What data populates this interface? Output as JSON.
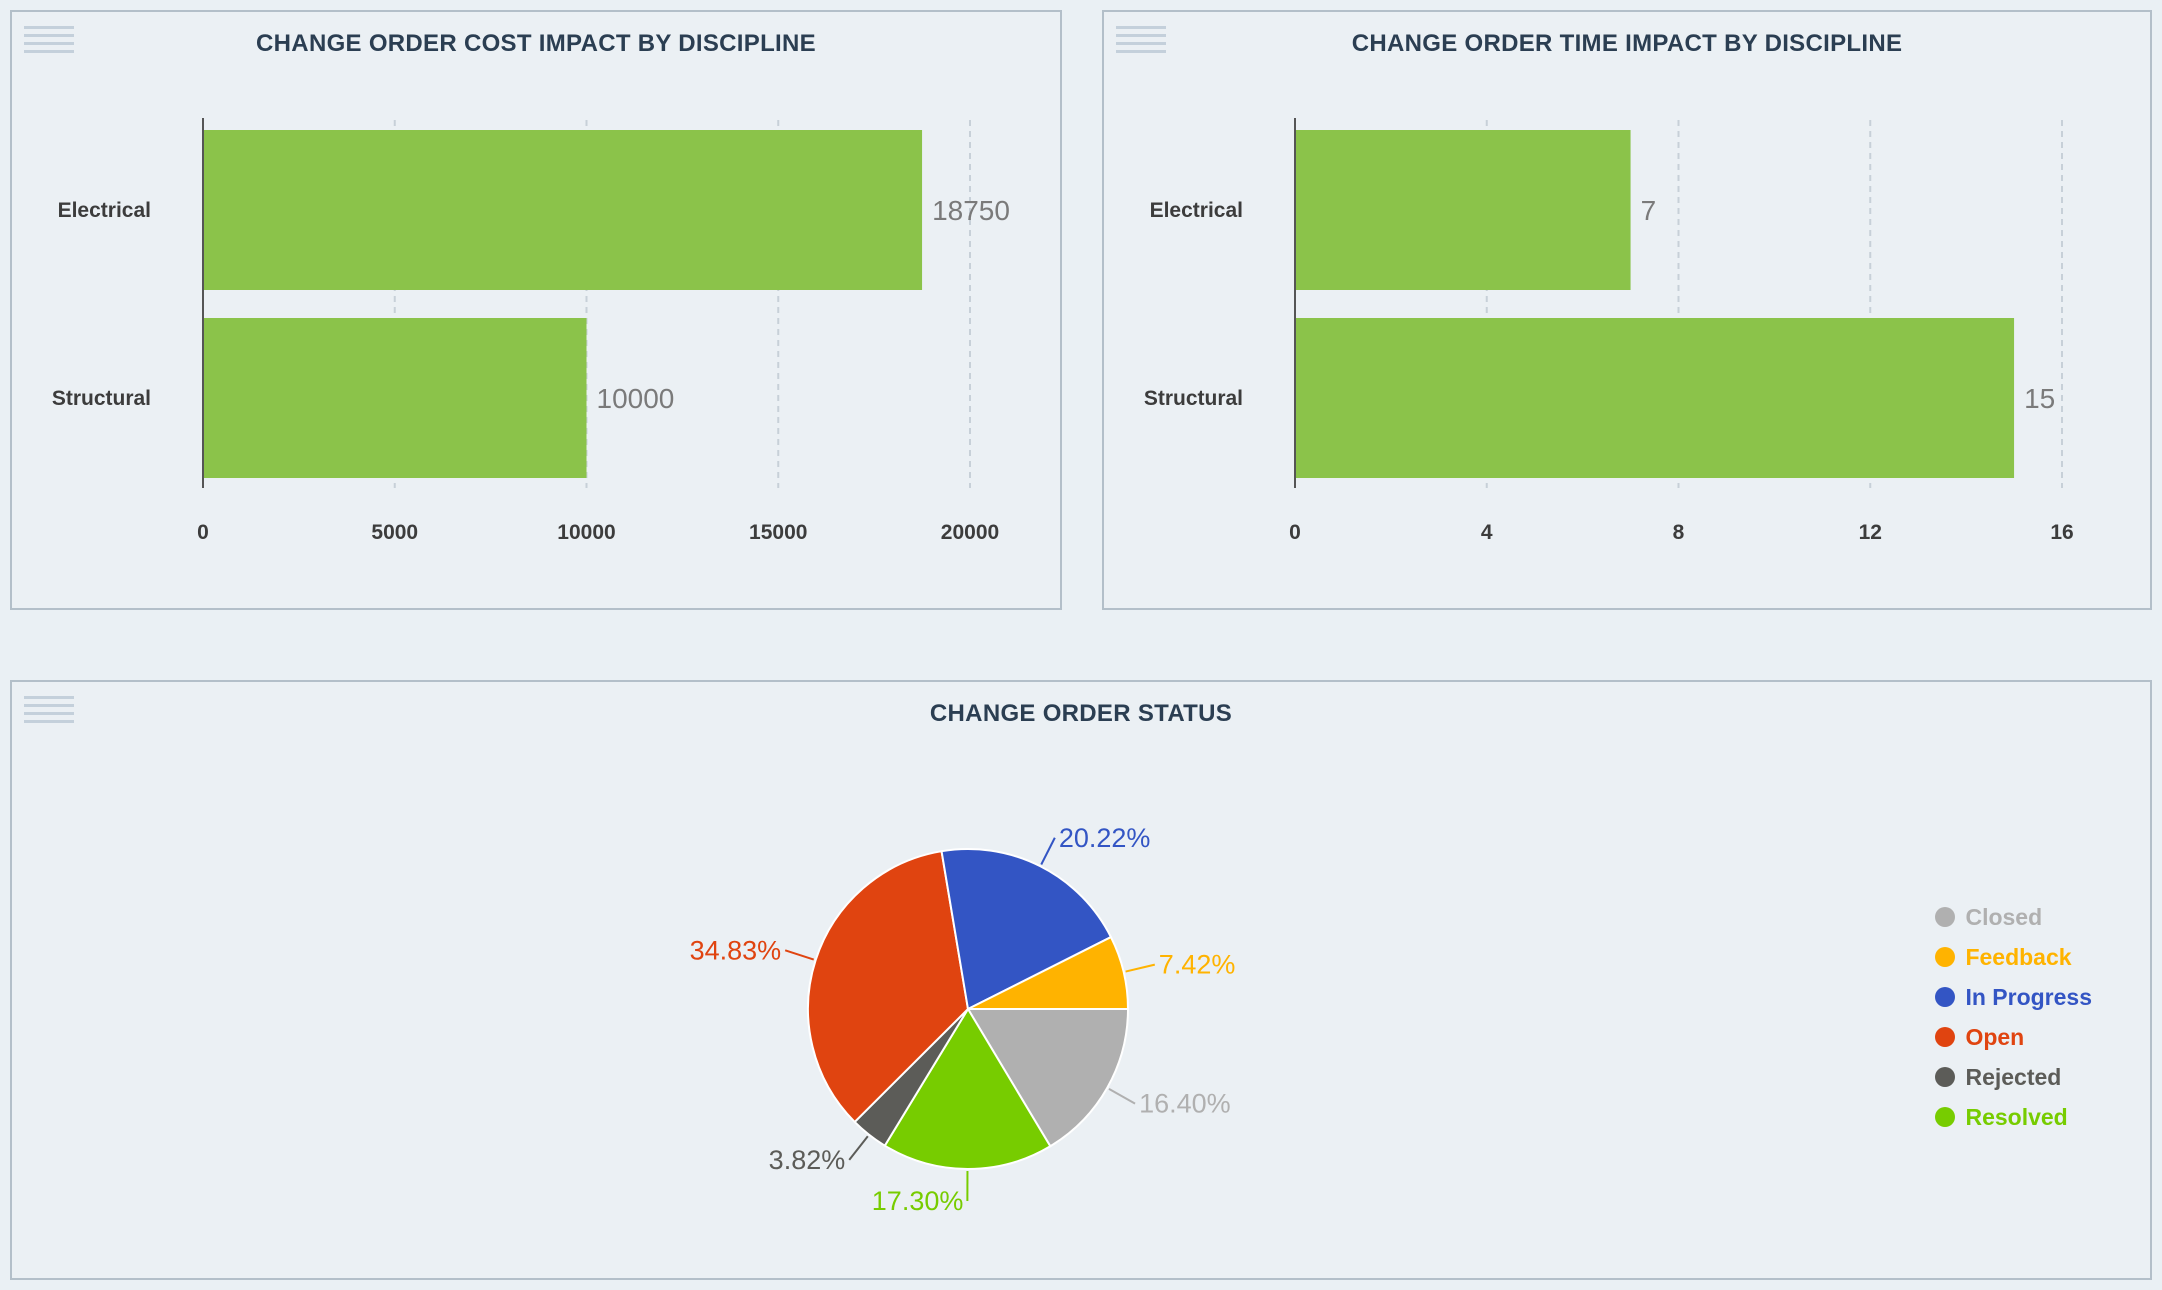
{
  "panels": {
    "cost": {
      "title": "CHANGE ORDER COST IMPACT BY DISCIPLINE",
      "chart_data": {
        "type": "bar",
        "orientation": "horizontal",
        "title": "CHANGE ORDER COST IMPACT BY DISCIPLINE",
        "categories": [
          "Electrical",
          "Structural"
        ],
        "values": [
          18750,
          10000
        ],
        "xlim": [
          0,
          20000
        ],
        "xticks": [
          0,
          5000,
          10000,
          15000,
          20000
        ],
        "grid": "vertical dashed",
        "color": "#8bc34a"
      }
    },
    "time": {
      "title": "CHANGE ORDER TIME IMPACT BY DISCIPLINE",
      "chart_data": {
        "type": "bar",
        "orientation": "horizontal",
        "title": "CHANGE ORDER TIME IMPACT BY DISCIPLINE",
        "categories": [
          "Electrical",
          "Structural"
        ],
        "values": [
          7,
          15
        ],
        "xlim": [
          0,
          16
        ],
        "xticks": [
          0,
          4,
          8,
          12,
          16
        ],
        "grid": "vertical dashed",
        "color": "#8bc34a"
      }
    },
    "status": {
      "title": "CHANGE ORDER STATUS",
      "chart_data": {
        "type": "pie",
        "title": "CHANGE ORDER STATUS",
        "legend_position": "right",
        "slices": [
          {
            "name": "Closed",
            "value": 16.4,
            "label": "16.40%",
            "color": "#b0b0b0"
          },
          {
            "name": "Resolved",
            "value": 17.3,
            "label": "17.30%",
            "color": "#77cc00"
          },
          {
            "name": "Rejected",
            "value": 3.82,
            "label": "3.82%",
            "color": "#5c5c58"
          },
          {
            "name": "Open",
            "value": 34.83,
            "label": "34.83%",
            "color": "#e04410"
          },
          {
            "name": "In Progress",
            "value": 20.22,
            "label": "20.22%",
            "color": "#3355c4"
          },
          {
            "name": "Feedback",
            "value": 7.42,
            "label": "7.42%",
            "color": "#ffb300"
          }
        ],
        "legend": [
          {
            "name": "Closed",
            "color": "#b0b0b0"
          },
          {
            "name": "Feedback",
            "color": "#ffb300"
          },
          {
            "name": "In Progress",
            "color": "#3355c4"
          },
          {
            "name": "Open",
            "color": "#e04410"
          },
          {
            "name": "Rejected",
            "color": "#5c5c58"
          },
          {
            "name": "Resolved",
            "color": "#77cc00"
          }
        ]
      }
    }
  },
  "icons": {
    "menu": "menu-icon"
  }
}
